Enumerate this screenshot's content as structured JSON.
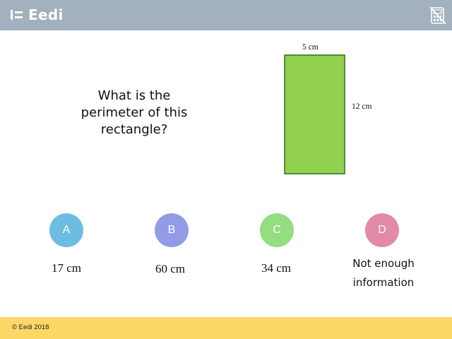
{
  "header": {
    "brand": "Eedi",
    "calculator_icon": "calculator-disabled-icon",
    "background": "#a2b1bd"
  },
  "question": {
    "text": "What is the perimeter of this rectangle?"
  },
  "figure": {
    "shape": "rectangle",
    "fill": "#92d050",
    "stroke": "#2f6b1f",
    "width_label": "5 cm",
    "height_label": "12 cm"
  },
  "options": [
    {
      "letter": "A",
      "answer": "17 cm",
      "color": "#6dbde0"
    },
    {
      "letter": "B",
      "answer": "60 cm",
      "color": "#919be6"
    },
    {
      "letter": "C",
      "answer": "34 cm",
      "color": "#94dd80"
    },
    {
      "letter": "D",
      "answer_line1": "Not enough",
      "answer_line2": "information",
      "color": "#e38aa6"
    }
  ],
  "footer": {
    "copyright": "© Eedi 2018",
    "background": "#fcd867"
  }
}
